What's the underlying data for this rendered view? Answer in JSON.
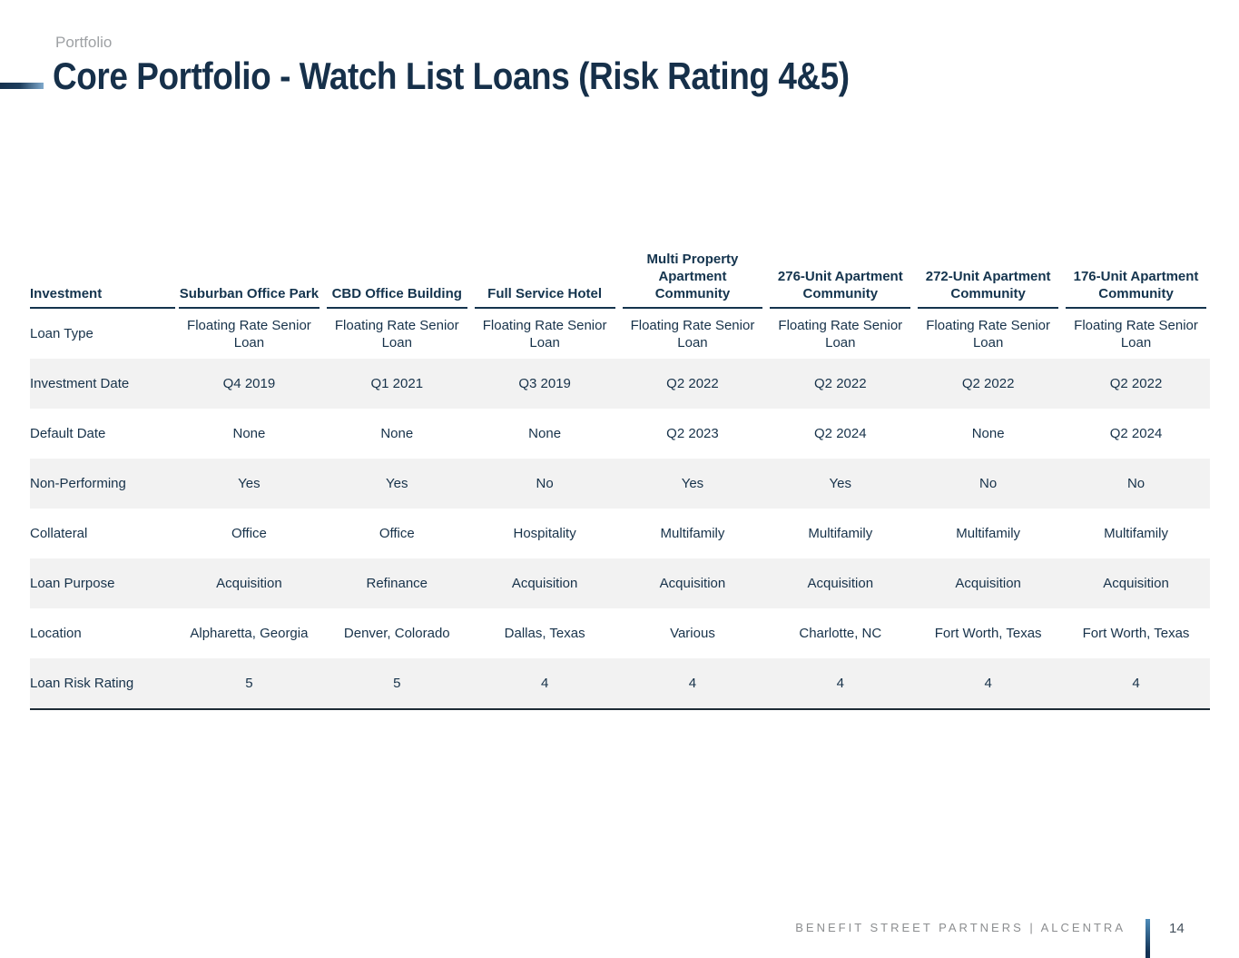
{
  "page": {
    "eyebrow": "Portfolio",
    "title": "Core Portfolio - Watch List Loans (Risk Rating 4&5)"
  },
  "colors": {
    "navy": "#14344E",
    "row_stripe": "#F2F2F2",
    "eyebrow_gray": "#9EA1A4",
    "footer_gray": "#8C8E90",
    "accent_bar_start": "#16314E",
    "accent_bar_end": "#7FA9CC",
    "footer_bar_top": "#4E8CBA",
    "footer_bar_bottom": "#123254"
  },
  "table": {
    "columns": [
      {
        "label": "Investment"
      },
      {
        "label": "Suburban Office Park"
      },
      {
        "label": "CBD Office Building"
      },
      {
        "label": "Full Service Hotel"
      },
      {
        "label": "Multi Property\nApartment Community"
      },
      {
        "label": "276-Unit Apartment\nCommunity"
      },
      {
        "label": "272-Unit Apartment\nCommunity"
      },
      {
        "label": "176-Unit Apartment\nCommunity"
      }
    ],
    "rows": [
      {
        "label": "Loan Type",
        "values": [
          "Floating Rate Senior Loan",
          "Floating Rate Senior Loan",
          "Floating Rate Senior Loan",
          "Floating Rate Senior Loan",
          "Floating Rate Senior Loan",
          "Floating Rate Senior Loan",
          "Floating Rate Senior Loan"
        ]
      },
      {
        "label": "Investment Date",
        "values": [
          "Q4 2019",
          "Q1 2021",
          "Q3 2019",
          "Q2 2022",
          "Q2 2022",
          "Q2 2022",
          "Q2 2022"
        ]
      },
      {
        "label": "Default Date",
        "values": [
          "None",
          "None",
          "None",
          "Q2 2023",
          "Q2 2024",
          "None",
          "Q2 2024"
        ]
      },
      {
        "label": "Non-Performing",
        "values": [
          "Yes",
          "Yes",
          "No",
          "Yes",
          "Yes",
          "No",
          "No"
        ]
      },
      {
        "label": "Collateral",
        "values": [
          "Office",
          "Office",
          "Hospitality",
          "Multifamily",
          "Multifamily",
          "Multifamily",
          "Multifamily"
        ]
      },
      {
        "label": "Loan Purpose",
        "values": [
          "Acquisition",
          "Refinance",
          "Acquisition",
          "Acquisition",
          "Acquisition",
          "Acquisition",
          "Acquisition"
        ]
      },
      {
        "label": "Location",
        "values": [
          "Alpharetta, Georgia",
          "Denver, Colorado",
          "Dallas, Texas",
          "Various",
          "Charlotte, NC",
          "Fort Worth, Texas",
          "Fort Worth, Texas"
        ]
      },
      {
        "label": "Loan Risk Rating",
        "values": [
          "5",
          "5",
          "4",
          "4",
          "4",
          "4",
          "4"
        ]
      }
    ]
  },
  "footer": {
    "brand": "BENEFIT STREET PARTNERS | ALCENTRA",
    "page_number": "14"
  }
}
